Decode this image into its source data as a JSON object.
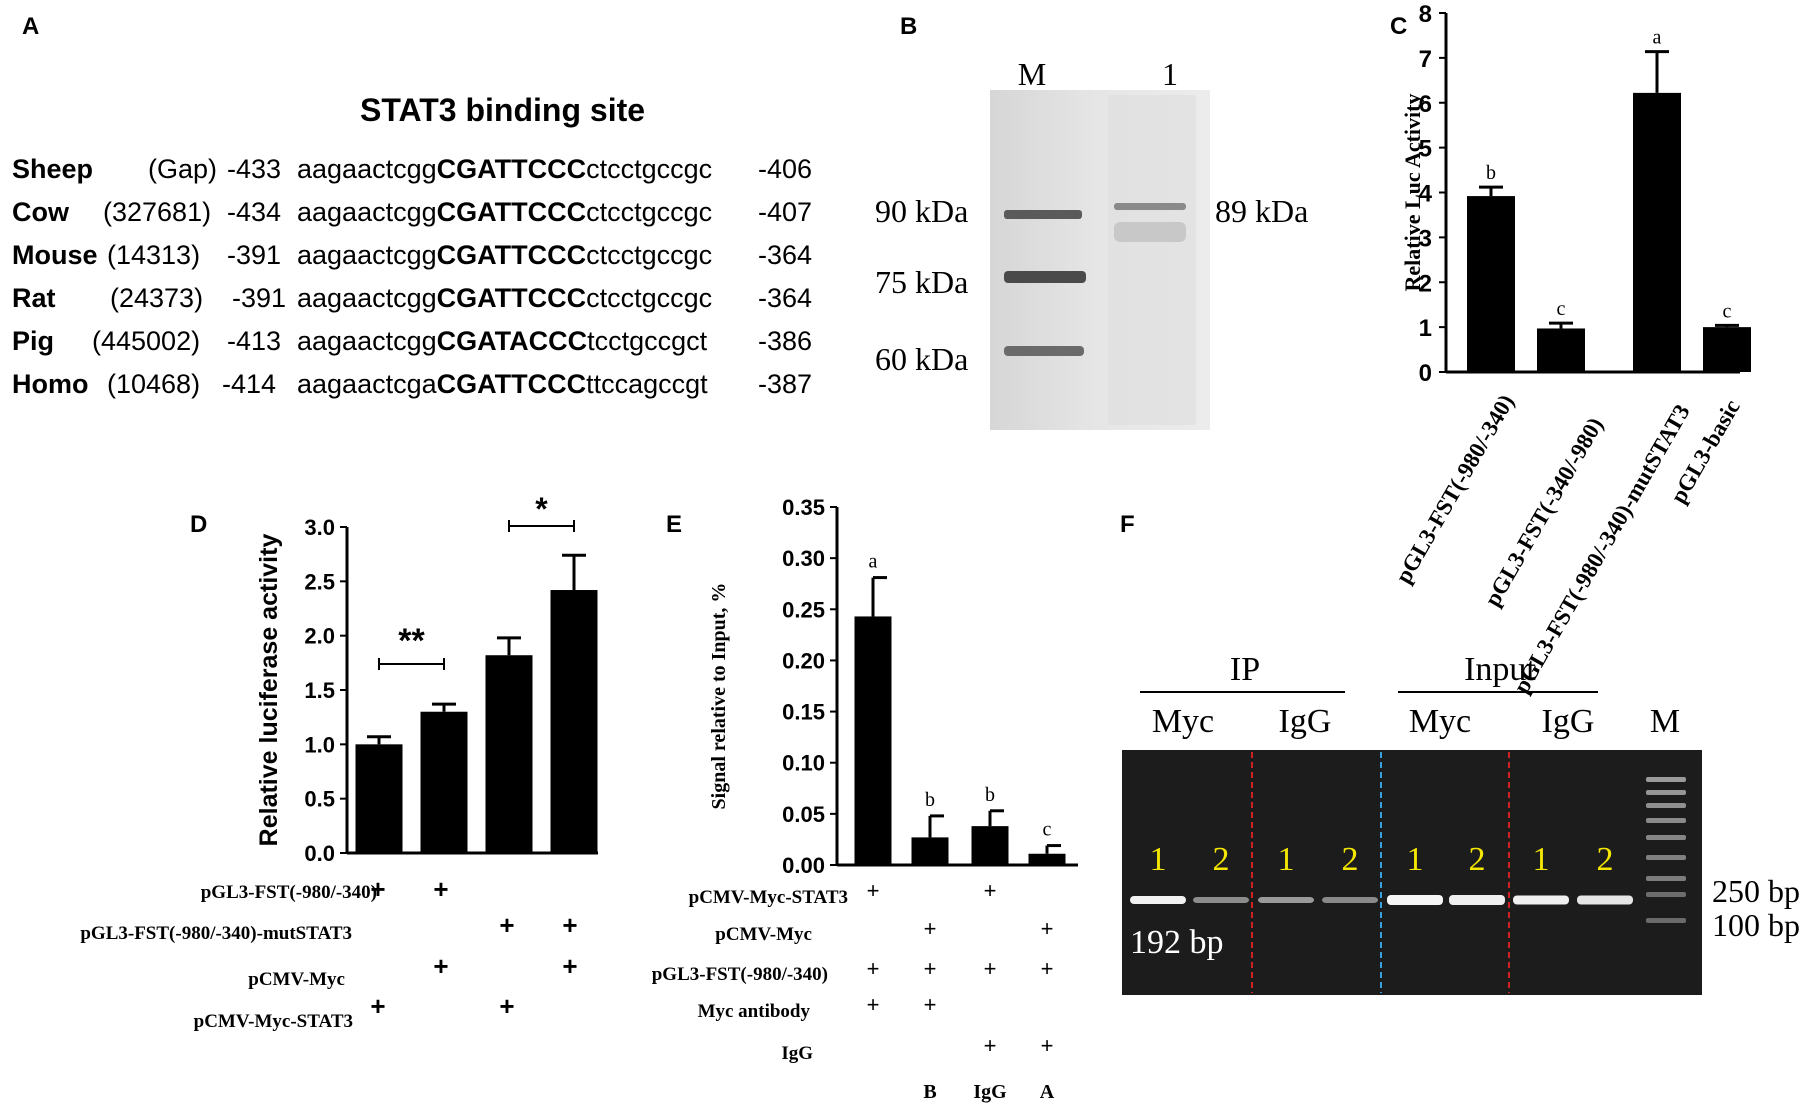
{
  "panels": {
    "A": {
      "label": "A",
      "title": "STAT3 binding site",
      "rows": [
        {
          "species": "Sheep",
          "id": "(Gap)",
          "start": "-433",
          "pre": "aagaactcgg",
          "core": "CGATTCCC",
          "post": "ctcctgccgc",
          "end": "-406"
        },
        {
          "species": "Cow",
          "id": "(327681)",
          "start": "-434",
          "pre": "aagaactcgg",
          "core": "CGATTCCC",
          "post": "ctcctgccgc",
          "end": "-407"
        },
        {
          "species": "Mouse",
          "id": "(14313)",
          "start": "-391",
          "pre": "aagaactcgg",
          "core": "CGATTCCC",
          "post": "ctcctgccgc",
          "end": "-364"
        },
        {
          "species": "Rat",
          "id": "(24373)",
          "start": "-391",
          "pre": "aagaactcgg",
          "core": "CGATTCCC",
          "post": "ctcctgccgc",
          "end": "-364"
        },
        {
          "species": "Pig",
          "id": "(445002)",
          "start": "-413",
          "pre": "aagaactcgg",
          "core": "CGATACCC",
          "post": "tcctgccgct",
          "end": "-386"
        },
        {
          "species": "Homo",
          "id": "(10468)",
          "start": "-414",
          "pre": "aagaactcga",
          "core": "CGATTCCC",
          "post": "ttccagccgt",
          "end": "-387"
        }
      ]
    },
    "B": {
      "label": "B",
      "lanes": [
        "M",
        "1"
      ],
      "markers": [
        "90 kDa",
        "75 kDa",
        "60 kDa"
      ],
      "band": "89 kDa"
    },
    "F": {
      "label": "F",
      "groups": [
        "IP",
        "Input"
      ],
      "antibodies": [
        "Myc",
        "IgG",
        "Myc",
        "IgG"
      ],
      "marker_lane": "M",
      "lanes": [
        "1",
        "2",
        "1",
        "2",
        "1",
        "2",
        "1",
        "2"
      ],
      "band": "192 bp",
      "ladder": [
        "250 bp",
        "100 bp"
      ]
    }
  },
  "chart_data": [
    {
      "panel": "C",
      "type": "bar",
      "ylabel": "Relative Luc Activity",
      "ylim": [
        0,
        8
      ],
      "yticks": [
        "0",
        "1",
        "2",
        "3",
        "4",
        "5",
        "6",
        "7",
        "8"
      ],
      "categories": [
        "pGL3-FST(-980/-340)",
        "pGL3-FST(-340/-980)",
        "pGL3-FST(-980/-340)-mutSTAT3",
        "pGL3-basic"
      ],
      "values": [
        3.92,
        0.97,
        6.22,
        1.0
      ],
      "errors": [
        0.2,
        0.12,
        0.92,
        0.04
      ],
      "letters": [
        "b",
        "c",
        "a",
        "c"
      ]
    },
    {
      "panel": "D",
      "type": "bar",
      "ylabel": "Relative luciferase activity",
      "ylim": [
        0,
        3.0
      ],
      "yticks": [
        "0.0",
        "0.5",
        "1.0",
        "1.5",
        "2.0",
        "2.5",
        "3.0"
      ],
      "values": [
        1.0,
        1.3,
        1.82,
        2.42
      ],
      "errors": [
        0.07,
        0.07,
        0.16,
        0.32
      ],
      "significance": [
        {
          "label": "**",
          "from": 0,
          "to": 1
        },
        {
          "label": "*",
          "from": 2,
          "to": 3
        }
      ],
      "rows": [
        {
          "label": "pGL3-FST(-980/-340)",
          "marks": [
            "+",
            "+",
            "",
            ""
          ]
        },
        {
          "label": "pGL3-FST(-980/-340)-mutSTAT3",
          "marks": [
            "",
            "",
            "+",
            "+"
          ]
        },
        {
          "label": "pCMV-Myc",
          "marks": [
            "",
            "+",
            "",
            "+"
          ]
        },
        {
          "label": "pCMV-Myc-STAT3",
          "marks": [
            "+",
            "",
            "+",
            ""
          ]
        }
      ]
    },
    {
      "panel": "E",
      "type": "bar",
      "ylabel": "Signal relative to Input, %",
      "ylim": [
        0,
        0.35
      ],
      "yticks": [
        "0.00",
        "0.05",
        "0.10",
        "0.15",
        "0.20",
        "0.25",
        "0.30",
        "0.35"
      ],
      "values": [
        0.243,
        0.027,
        0.038,
        0.011
      ],
      "errors": [
        0.038,
        0.021,
        0.015,
        0.008
      ],
      "letters": [
        "a",
        "b",
        "b",
        "c"
      ],
      "rows": [
        {
          "label": "pCMV-Myc-STAT3",
          "marks": [
            "+",
            "",
            "+",
            ""
          ]
        },
        {
          "label": "pCMV-Myc",
          "marks": [
            "",
            "+",
            "",
            "+"
          ]
        },
        {
          "label": "pGL3-FST(-980/-340)",
          "marks": [
            "+",
            "+",
            "+",
            "+"
          ]
        },
        {
          "label": "Myc antibody",
          "marks": [
            "+",
            "+",
            "",
            ""
          ]
        },
        {
          "label": "IgG",
          "marks": [
            "",
            "",
            "+",
            "+"
          ]
        }
      ],
      "bottom_labels": [
        "B",
        "IgG",
        "A"
      ]
    }
  ],
  "colors": {
    "bar": "#000000",
    "gel_bg": "#1c1c1c",
    "lane_num": "#f5e600",
    "red_dash": "#cc2222",
    "blue_dash": "#3aa0dd"
  }
}
